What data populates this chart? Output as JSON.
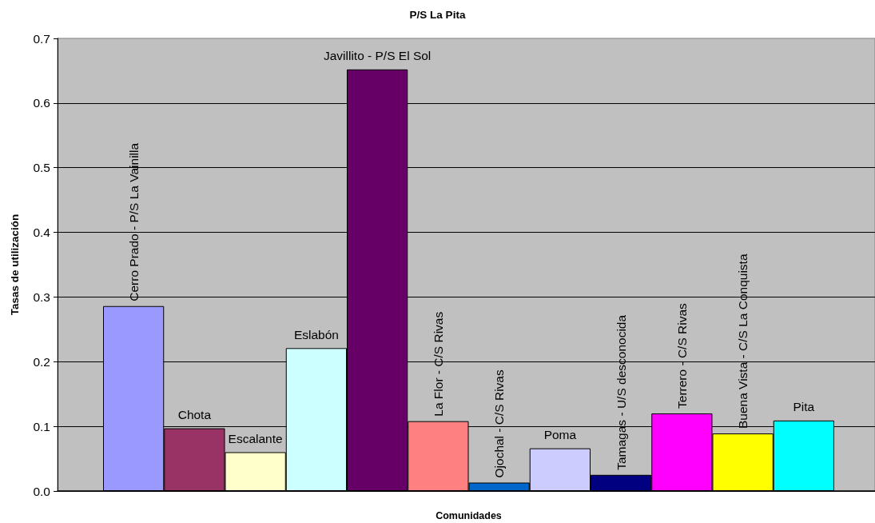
{
  "chart_data": {
    "type": "bar",
    "title": "P/S La Pita",
    "xlabel": "Comunidades",
    "ylabel": "Tasas de utilización",
    "categories": [
      "Cerro Prado - P/S La Vainilla",
      "Chota",
      "Escalante",
      "Eslabón",
      "Javillito - P/S El Sol",
      "La Flor - C/S Rivas",
      "Ojochal - C/S Rivas",
      "Poma",
      "Tamagas - U/S desconocida",
      "Terrero - C/S Rivas",
      "Buena Vista - C/S La Conquista",
      "Pita"
    ],
    "values": [
      0.286,
      0.097,
      0.06,
      0.221,
      0.652,
      0.108,
      0.013,
      0.066,
      0.025,
      0.12,
      0.089,
      0.109
    ],
    "colors": [
      "#9999ff",
      "#993366",
      "#ffffcc",
      "#ccffff",
      "#660066",
      "#ff8080",
      "#0066cc",
      "#ccccff",
      "#000080",
      "#ff00ff",
      "#ffff00",
      "#00ffff"
    ],
    "ylim": [
      0,
      0.7
    ],
    "yticks": [
      {
        "value": 0,
        "label": "0.0"
      },
      0.1,
      0.2,
      0.3,
      0.4,
      0.5,
      0.6,
      0.7
    ],
    "grid": "y"
  }
}
